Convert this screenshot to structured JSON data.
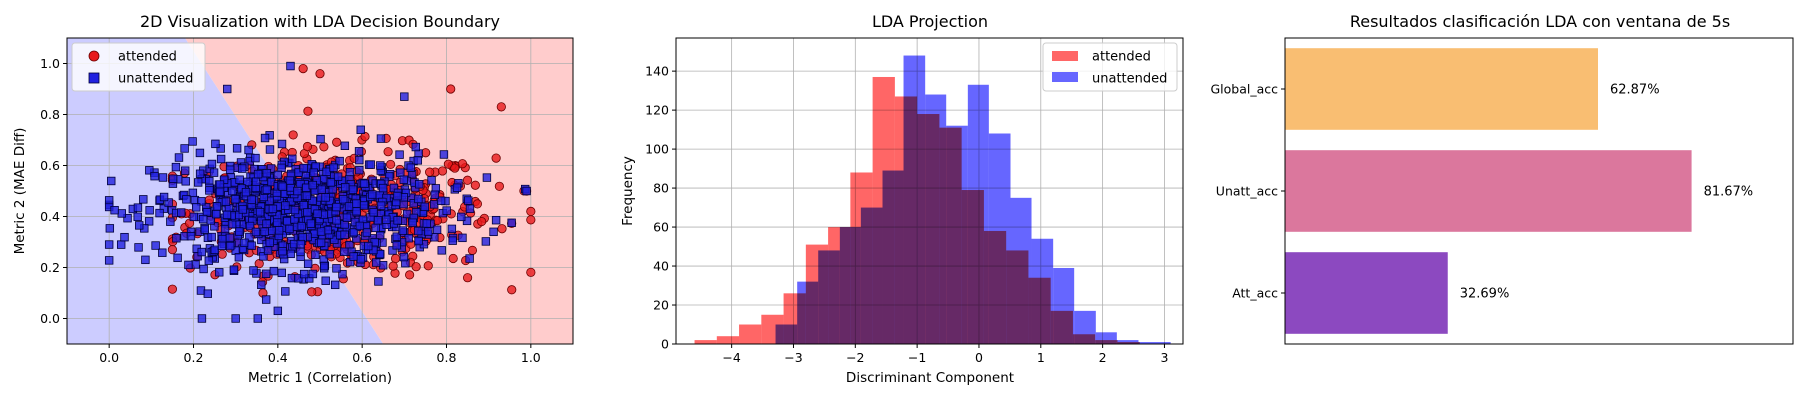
{
  "chart_data": [
    {
      "type": "scatter",
      "title": "2D Visualization with LDA Decision Boundary",
      "xlabel": "Metric 1 (Correlation)",
      "ylabel": "Metric 2 (MAE Diff)",
      "xlim": [
        -0.1,
        1.1
      ],
      "ylim": [
        -0.1,
        1.1
      ],
      "xticks": [
        "0.0",
        "0.2",
        "0.4",
        "0.6",
        "0.8",
        "1.0"
      ],
      "yticks": [
        "0.0",
        "0.2",
        "0.4",
        "0.6",
        "0.8",
        "1.0"
      ],
      "grid": true,
      "legend": "top-left",
      "decision_boundary": [
        [
          0.18,
          1.1
        ],
        [
          0.65,
          -0.1
        ]
      ],
      "regions": [
        {
          "label": "unattended",
          "color": "#ccccff"
        },
        {
          "label": "attended",
          "color": "#ffcccc"
        }
      ],
      "series": [
        {
          "name": "attended",
          "marker": "circle",
          "color": "#e8191b",
          "edge": "#6b0000",
          "n": 500,
          "center": [
            0.55,
            0.42
          ],
          "spread": [
            0.18,
            0.12
          ],
          "x_range": [
            0.15,
            1.0
          ],
          "y_range": [
            0.1,
            1.0
          ],
          "extreme_points": [
            [
              0.46,
              0.98
            ],
            [
              0.5,
              0.96
            ],
            [
              0.93,
              0.83
            ],
            [
              0.81,
              0.9
            ],
            [
              1.0,
              0.42
            ],
            [
              0.15,
              0.27
            ],
            [
              0.85,
              0.16
            ],
            [
              0.99,
              0.5
            ]
          ]
        },
        {
          "name": "unattended",
          "marker": "square",
          "color": "#2020e0",
          "edge": "#00003a",
          "n": 900,
          "center": [
            0.45,
            0.42
          ],
          "spread": [
            0.17,
            0.11
          ],
          "x_range": [
            0.0,
            1.0
          ],
          "y_range": [
            0.0,
            1.0
          ],
          "extreme_points": [
            [
              0.0,
              0.29
            ],
            [
              0.22,
              0.0
            ],
            [
              0.3,
              0.0
            ],
            [
              0.43,
              0.99
            ],
            [
              0.4,
              0.03
            ],
            [
              0.28,
              0.9
            ],
            [
              0.7,
              0.87
            ],
            [
              0.99,
              0.5
            ]
          ]
        }
      ]
    },
    {
      "type": "bar",
      "subtype": "histogram",
      "title": "LDA Projection",
      "xlabel": "Discriminant Component",
      "ylabel": "Frequency",
      "xlim": [
        -4.9,
        3.3
      ],
      "ylim": [
        0,
        157
      ],
      "xticks": [
        "−4",
        "−3",
        "−2",
        "−1",
        "0",
        "1",
        "2",
        "3"
      ],
      "yticks": [
        "0",
        "20",
        "40",
        "60",
        "80",
        "100",
        "120",
        "140"
      ],
      "grid": true,
      "legend": "top-right",
      "series": [
        {
          "name": "attended",
          "color": "#ff6666",
          "bin_edges": [
            -4.6,
            -4.24,
            -3.88,
            -3.52,
            -3.16,
            -2.8,
            -2.44,
            -2.08,
            -1.72,
            -1.36,
            -1.0,
            -0.64,
            -0.28,
            0.08,
            0.44,
            0.8,
            1.16,
            1.52,
            1.88,
            2.24,
            2.6
          ],
          "counts": [
            2,
            4,
            10,
            15,
            26,
            51,
            60,
            88,
            137,
            127,
            118,
            111,
            79,
            58,
            48,
            34,
            17,
            5,
            2,
            1
          ]
        },
        {
          "name": "unattended",
          "color": "#6666ff",
          "bin_edges": [
            -3.29,
            -2.94,
            -2.6,
            -2.25,
            -1.91,
            -1.56,
            -1.22,
            -0.87,
            -0.53,
            -0.18,
            0.16,
            0.51,
            0.85,
            1.2,
            1.54,
            1.89,
            2.23,
            2.58,
            2.92,
            3.1
          ],
          "counts": [
            10,
            32,
            48,
            60,
            70,
            89,
            148,
            128,
            112,
            133,
            108,
            75,
            54,
            39,
            17,
            6,
            2,
            1,
            1
          ]
        }
      ]
    },
    {
      "type": "bar",
      "orientation": "horizontal",
      "title": "Resultados clasificación LDA con ventana de 5s",
      "categories": [
        "Global_acc",
        "Unatt_acc",
        "Att_acc"
      ],
      "values": [
        62.87,
        81.67,
        32.69
      ],
      "value_labels": [
        "62.87%",
        "81.67%",
        "32.69%"
      ],
      "colors": [
        "#f9be72",
        "#db779d",
        "#8c49c0"
      ],
      "xlim": [
        0,
        100
      ],
      "xlabel": "",
      "ylabel": "",
      "grid": false
    }
  ]
}
